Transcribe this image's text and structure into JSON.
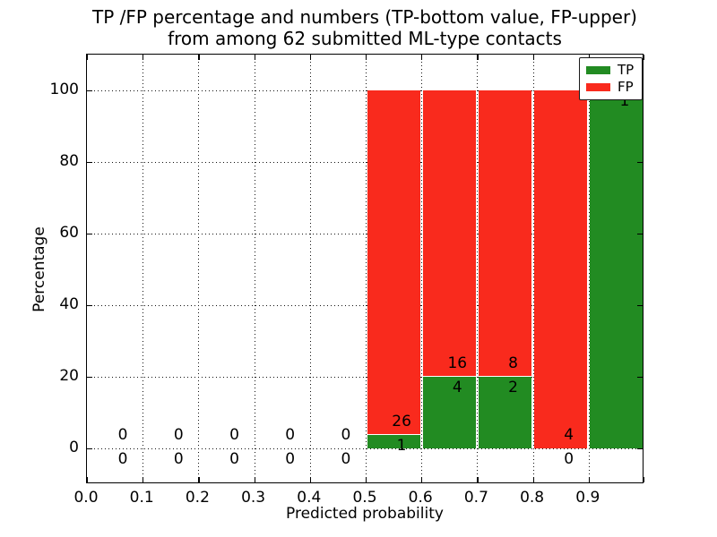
{
  "chart_data": {
    "type": "bar",
    "stacked": true,
    "units": "percent of bin total",
    "title_lines": [
      "TP /FP percentage and numbers (TP-bottom value, FP-upper)",
      "from among 62 submitted ML-type contacts"
    ],
    "xlabel": "Predicted probability",
    "ylabel": "Percentage",
    "xlim": [
      0.0,
      1.0
    ],
    "ylim": [
      -10,
      110
    ],
    "grid": "dotted, both axes",
    "total_contacts": 62,
    "xticks": {
      "values": [
        0.0,
        0.1,
        0.2,
        0.3,
        0.4,
        0.5,
        0.6,
        0.7,
        0.8,
        0.9
      ],
      "labels": [
        "0.0",
        "0.1",
        "0.2",
        "0.3",
        "0.4",
        "0.5",
        "0.6",
        "0.7",
        "0.8",
        "0.9"
      ],
      "mark_values": [
        0.0,
        0.1,
        0.2,
        0.3,
        0.4,
        0.5,
        0.6,
        0.7,
        0.8,
        0.9,
        1.0
      ]
    },
    "yticks": {
      "values": [
        0,
        20,
        40,
        60,
        80,
        100
      ],
      "labels": [
        "0",
        "20",
        "40",
        "60",
        "80",
        "100"
      ]
    },
    "bins": [
      {
        "range": [
          0.0,
          0.1
        ],
        "tp": 0,
        "fp": 0
      },
      {
        "range": [
          0.1,
          0.2
        ],
        "tp": 0,
        "fp": 0
      },
      {
        "range": [
          0.2,
          0.3
        ],
        "tp": 0,
        "fp": 0
      },
      {
        "range": [
          0.3,
          0.4
        ],
        "tp": 0,
        "fp": 0
      },
      {
        "range": [
          0.4,
          0.5
        ],
        "tp": 0,
        "fp": 0
      },
      {
        "range": [
          0.5,
          0.6
        ],
        "tp": 1,
        "fp": 26
      },
      {
        "range": [
          0.6,
          0.7
        ],
        "tp": 4,
        "fp": 16
      },
      {
        "range": [
          0.7,
          0.8
        ],
        "tp": 2,
        "fp": 8
      },
      {
        "range": [
          0.8,
          0.9
        ],
        "tp": 0,
        "fp": 4
      },
      {
        "range": [
          0.9,
          1.0
        ],
        "tp": 1,
        "fp": 0
      }
    ],
    "colors": {
      "tp": "#228b22",
      "fp": "#f92a1d",
      "spine": "#000000",
      "background": "#ffffff"
    },
    "legend": {
      "position": "upper right",
      "entries": [
        {
          "label": "TP",
          "color": "#228b22"
        },
        {
          "label": "FP",
          "color": "#f92a1d"
        }
      ]
    }
  }
}
